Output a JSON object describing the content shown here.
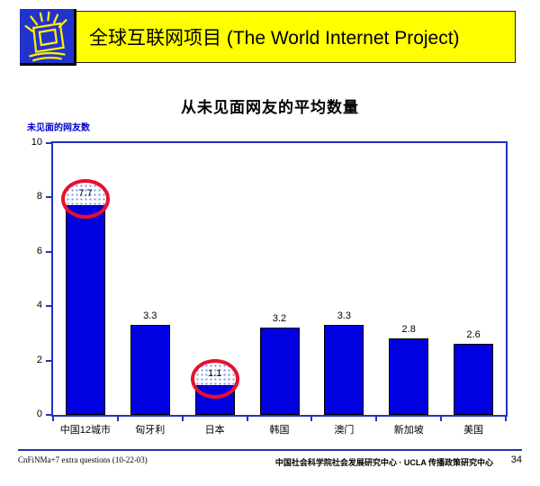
{
  "header": {
    "title": "全球互联网项目 (The World Internet Project)",
    "banner_color": "#FFFF00",
    "logo_icon": "shining-monitor-logo",
    "logo_bg_color": "#2233CC",
    "logo_stroke_color": "#FFEE00"
  },
  "chart_data": {
    "type": "bar",
    "title": "从未见面网友的平均数量",
    "ylabel": "未见面的网友数",
    "xlabel": "",
    "categories": [
      "中国12城市",
      "匈牙利",
      "日本",
      "韩国",
      "澳门",
      "新加坡",
      "美国"
    ],
    "values": [
      7.7,
      3.3,
      1.1,
      3.2,
      3.3,
      2.8,
      2.6
    ],
    "value_labels": [
      "7.7",
      "3.3",
      "1.1",
      "3.2",
      "3.3",
      "2.8",
      "2.6"
    ],
    "highlighted_indices": [
      0,
      2
    ],
    "highlight_ring_color": "#E8112D",
    "ylim": [
      0,
      10
    ],
    "yticks": [
      0,
      2,
      4,
      6,
      8,
      10
    ],
    "grid": false,
    "legend": null,
    "bar_color": "#0000E0",
    "axis_color": "#2233BB"
  },
  "footer": {
    "left_text": "CnFiNMa+7 extra questions (10-22-03)",
    "right_text": "中国社会科学院社会发展研究中心 · UCLA 传播政策研究中心",
    "page_number": "34"
  }
}
